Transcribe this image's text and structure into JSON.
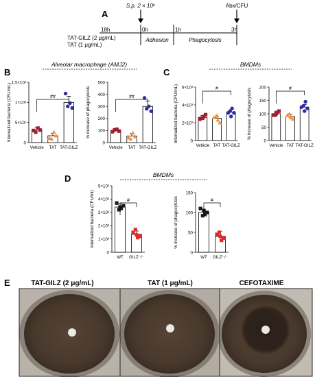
{
  "panel_letters": [
    "A",
    "B",
    "C",
    "D",
    "E"
  ],
  "timeline": {
    "infection": "S.p. 2 × 10⁶",
    "abx": "Abx/CFU",
    "times": [
      "18h",
      "0h",
      "1h",
      "3h"
    ],
    "treatments": [
      "TAT-GILZ (2 μg/mL)",
      "TAT (1 μg/mL)"
    ],
    "phases": [
      "Adhesion",
      "Phagocytosis"
    ]
  },
  "titles": {
    "b": "Alveolar macrophage (AMJ2)",
    "c": "BMDMs",
    "d": "BMDMs"
  },
  "axis_labels": {
    "cfu": "Internalized bacteria (CFU/mL)",
    "cfu_ml": "Internalized bacteria (CFU/ml)",
    "phago": "% increase of phagocytosis"
  },
  "significance": "##",
  "significance_single": "#",
  "chart_data": [
    {
      "type": "bar",
      "panel": "B",
      "ylabel": "Internalized bacteria (CFU/mL)",
      "categories": [
        "Vehicle",
        "TAT",
        "TAT-GILZ"
      ],
      "ticks": [
        "0",
        "5×10²",
        "1×10³",
        "1.5×10³"
      ],
      "ylim": [
        0,
        1500
      ],
      "values": [
        330,
        170,
        1000
      ],
      "errors": [
        40,
        60,
        150
      ],
      "points": [
        [
          300,
          360,
          310,
          260
        ],
        [
          110,
          260,
          170,
          90
        ],
        [
          1220,
          980,
          860,
          900
        ]
      ],
      "colors": [
        "#a01e2e",
        "#f0913a",
        "#2e2e9e"
      ],
      "sig": "##"
    },
    {
      "type": "bar",
      "panel": "B",
      "ylabel": "% increase of phagocytosis",
      "categories": [
        "Vehicle",
        "TAT",
        "TAT-GILZ"
      ],
      "ticks": [
        "0",
        "100",
        "200",
        "300",
        "400",
        "500"
      ],
      "ylim": [
        0,
        500
      ],
      "values": [
        100,
        55,
        300
      ],
      "errors": [
        10,
        20,
        45
      ],
      "points": [
        [
          90,
          110,
          95,
          105
        ],
        [
          40,
          80,
          50,
          30
        ],
        [
          370,
          300,
          260,
          280
        ]
      ],
      "colors": [
        "#a01e2e",
        "#f0913a",
        "#2e2e9e"
      ],
      "sig": "##"
    },
    {
      "type": "bar",
      "panel": "C",
      "ylabel": "Internalized bacteria (CFU/mL)",
      "categories": [
        "Vehicle",
        "TAT",
        "TAT-GILZ"
      ],
      "ticks": [
        "0",
        "2×10³",
        "4×10³",
        "6×10³"
      ],
      "ylim": [
        0,
        6000
      ],
      "values": [
        2600,
        2500,
        3200
      ],
      "errors": [
        200,
        200,
        250
      ],
      "points": [
        [
          2400,
          2700,
          2900,
          2500,
          2500
        ],
        [
          2600,
          2300,
          2000,
          2700,
          2800
        ],
        [
          3100,
          3600,
          3100,
          3300,
          2700
        ]
      ],
      "colors": [
        "#a01e2e",
        "#f0913a",
        "#2e2e9e"
      ],
      "sig": "#"
    },
    {
      "type": "bar",
      "panel": "C",
      "ylabel": "% increase of phagocytosis",
      "categories": [
        "Vehicle",
        "TAT",
        "TAT-GILZ"
      ],
      "ticks": [
        "0",
        "50",
        "100",
        "150",
        "200"
      ],
      "ylim": [
        0,
        200
      ],
      "values": [
        100,
        90,
        125
      ],
      "errors": [
        8,
        8,
        10
      ],
      "points": [
        [
          95,
          105,
          110,
          95,
          100
        ],
        [
          95,
          85,
          80,
          100,
          90
        ],
        [
          125,
          145,
          120,
          130,
          110
        ]
      ],
      "colors": [
        "#a01e2e",
        "#f0913a",
        "#2e2e9e"
      ],
      "sig": "#"
    },
    {
      "type": "bar",
      "panel": "D",
      "ylabel": "Internalized bacteria (CFU/ml)",
      "categories": [
        "WT",
        "GILZ⁻/⁻"
      ],
      "ticks": [
        "0",
        "1×10³",
        "2×10³",
        "3×10³",
        "4×10³",
        "5×10³"
      ],
      "ylim": [
        0,
        5000
      ],
      "values": [
        3400,
        1350
      ],
      "errors": [
        250,
        250
      ],
      "points": [
        [
          3700,
          3300,
          3500,
          3200,
          3400
        ],
        [
          1500,
          1100,
          1200,
          1700,
          1300
        ]
      ],
      "colors": [
        "#1a1a1a",
        "#e02a2a"
      ],
      "sig": "#"
    },
    {
      "type": "bar",
      "panel": "D",
      "ylabel": "% increase of phagocytosis",
      "categories": [
        "WT",
        "GILZ⁻/⁻"
      ],
      "ticks": [
        "0",
        "50",
        "100",
        "150"
      ],
      "ylim": [
        0,
        150
      ],
      "values": [
        100,
        40
      ],
      "errors": [
        6,
        12
      ],
      "points": [
        [
          110,
          95,
          100,
          92,
          105
        ],
        [
          45,
          30,
          35,
          50,
          40
        ]
      ],
      "colors": [
        "#1a1a1a",
        "#e02a2a"
      ],
      "sig": "#"
    }
  ],
  "plates": [
    "TAT-GILZ (2 μg/mL)",
    "TAT (1 μg/mL)",
    "CEFOTAXIME"
  ]
}
